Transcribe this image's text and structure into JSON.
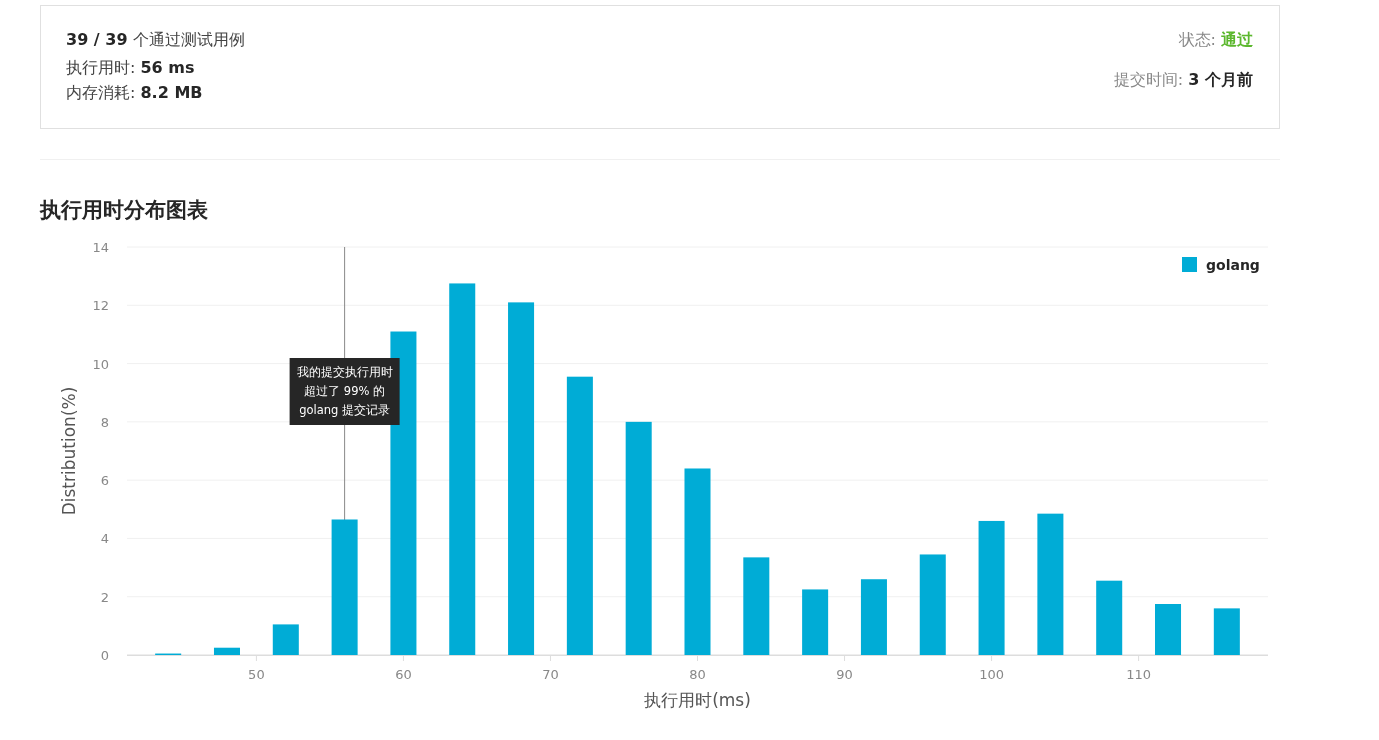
{
  "chart_data": [
    {
      "type": "other",
      "annotations": [
        "**39 / 39** 个通过测试用例",
        "执行用时: **56 ms**",
        "内存消耗: **8.2 MB**",
        "状态: **通过**",
        "提交时间: **3 个月前**"
      ]
    },
    {
      "type": "bar",
      "title": "执行用时分布图表",
      "xlabel": "执行用时(ms)",
      "ylabel": "Distribution(%)",
      "x": [
        44,
        48,
        52,
        56,
        60,
        64,
        68,
        72,
        76,
        80,
        84,
        88,
        92,
        96,
        100,
        104,
        108,
        112,
        116
      ],
      "series": [
        {
          "name": "golang",
          "color": "#00acd6",
          "values": [
            0.05,
            0.25,
            1.05,
            4.65,
            11.1,
            12.75,
            12.1,
            9.55,
            8.0,
            6.4,
            3.35,
            2.25,
            2.6,
            3.45,
            4.6,
            4.85,
            2.55,
            1.75,
            1.6
          ]
        }
      ],
      "xlim": [
        41.2,
        118.8
      ],
      "ylim": [
        0,
        14
      ],
      "xticks": [
        50,
        60,
        70,
        80,
        90,
        100,
        110
      ],
      "yticks": [
        0,
        2,
        4,
        6,
        8,
        10,
        12,
        14
      ],
      "grid": "y",
      "legend": "top right",
      "ref_lines": [
        {
          "axis": "x",
          "value": 56,
          "label": "我的提交执行用时超过了 99% 的 golang 提交记录"
        }
      ]
    }
  ]
}
